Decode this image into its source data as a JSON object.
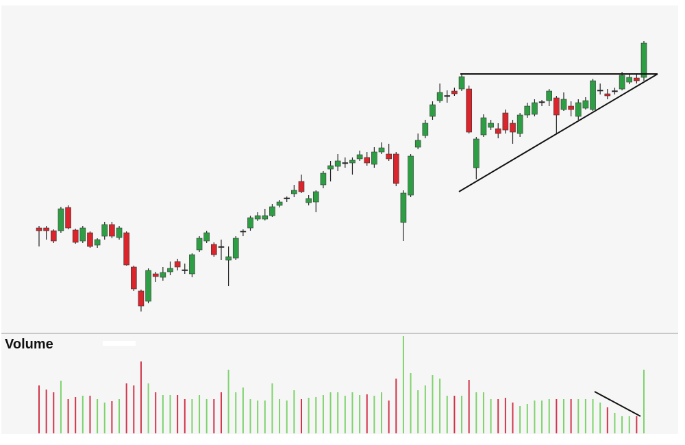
{
  "chart_data": {
    "type": "candlestick",
    "open": [
      167,
      167,
      163,
      163,
      197,
      164,
      148,
      160,
      142,
      155,
      172,
      153,
      160,
      110,
      75,
      60,
      100,
      95,
      103,
      118,
      106,
      100,
      135,
      148,
      143,
      140,
      120,
      123,
      162,
      167,
      180,
      180,
      185,
      200,
      210,
      217,
      235,
      204,
      205,
      230,
      253,
      257,
      262,
      262,
      268,
      270,
      260,
      278,
      275,
      275,
      175,
      215,
      285,
      302,
      330,
      353,
      360,
      367,
      370,
      370,
      255,
      303,
      314,
      312,
      335,
      320,
      305,
      332,
      333,
      351,
      353,
      357,
      340,
      345,
      330,
      342,
      340,
      368,
      363,
      367,
      370,
      380,
      386,
      387
    ],
    "high": [
      170,
      170,
      165,
      198,
      200,
      166,
      170,
      162,
      152,
      176,
      176,
      170,
      162,
      112,
      77,
      108,
      103,
      110,
      118,
      122,
      115,
      130,
      155,
      163,
      146,
      150,
      140,
      155,
      165,
      185,
      190,
      195,
      202,
      208,
      213,
      230,
      245,
      215,
      222,
      250,
      265,
      275,
      270,
      270,
      280,
      278,
      285,
      292,
      290,
      278,
      222,
      275,
      305,
      325,
      352,
      378,
      368,
      372,
      392,
      375,
      300,
      333,
      325,
      320,
      340,
      325,
      335,
      350,
      355,
      354,
      370,
      360,
      365,
      352,
      355,
      358,
      385,
      378,
      370,
      372,
      395,
      392,
      392,
      440
    ],
    "low": [
      140,
      150,
      145,
      160,
      165,
      144,
      145,
      138,
      138,
      150,
      152,
      150,
      112,
      75,
      45,
      57,
      88,
      90,
      98,
      105,
      100,
      95,
      132,
      145,
      125,
      120,
      82,
      120,
      155,
      163,
      177,
      178,
      183,
      197,
      205,
      212,
      218,
      200,
      190,
      225,
      235,
      250,
      255,
      245,
      265,
      258,
      255,
      275,
      265,
      228,
      148,
      212,
      282,
      298,
      325,
      350,
      350,
      360,
      367,
      305,
      238,
      300,
      310,
      298,
      305,
      290,
      300,
      328,
      330,
      345,
      345,
      305,
      338,
      330,
      325,
      340,
      338,
      362,
      355,
      362,
      368,
      377,
      378,
      382
    ],
    "close": [
      163,
      163,
      148,
      195,
      167,
      146,
      167,
      140,
      150,
      172,
      155,
      167,
      113,
      78,
      53,
      105,
      96,
      102,
      108,
      110,
      105,
      128,
      152,
      160,
      128,
      139,
      125,
      152,
      162.5,
      182,
      185,
      185,
      198,
      205,
      211,
      222,
      220,
      210,
      220,
      247,
      258,
      265,
      262.5,
      266,
      274,
      262,
      278,
      284,
      268,
      232,
      218,
      272,
      295,
      320,
      347,
      365,
      360.5,
      363,
      388,
      307,
      297,
      328,
      320,
      305,
      310,
      307,
      332,
      345,
      350,
      351.5,
      367,
      332,
      355,
      340,
      350,
      353,
      382,
      368.5,
      360,
      367.5,
      390,
      387,
      382,
      437
    ],
    "volume_label": "Volume",
    "volume": [
      70,
      64,
      60,
      77,
      50,
      53,
      55,
      55,
      50,
      45,
      47,
      50,
      73,
      70,
      105,
      73,
      60,
      56,
      56,
      56,
      50,
      50,
      56,
      50,
      50,
      60,
      93,
      60,
      67,
      50,
      48,
      48,
      73,
      50,
      48,
      63,
      50,
      52,
      53,
      56,
      60,
      60,
      55,
      60,
      56,
      57,
      55,
      60,
      48,
      80,
      142,
      88,
      63,
      70,
      85,
      80,
      55,
      55,
      55,
      78,
      60,
      60,
      50,
      50,
      52,
      45,
      40,
      43,
      48,
      48,
      50,
      50,
      50,
      50,
      50,
      50,
      50,
      45,
      38,
      30,
      25,
      25,
      25,
      93
    ],
    "ylim": [
      15,
      490
    ],
    "volume_ylim": [
      0,
      146
    ],
    "up_color": "#2e9e44",
    "down_color": "#d9252b",
    "volume_up_color": "#7dd36b",
    "volume_down_color": "#d23349"
  }
}
